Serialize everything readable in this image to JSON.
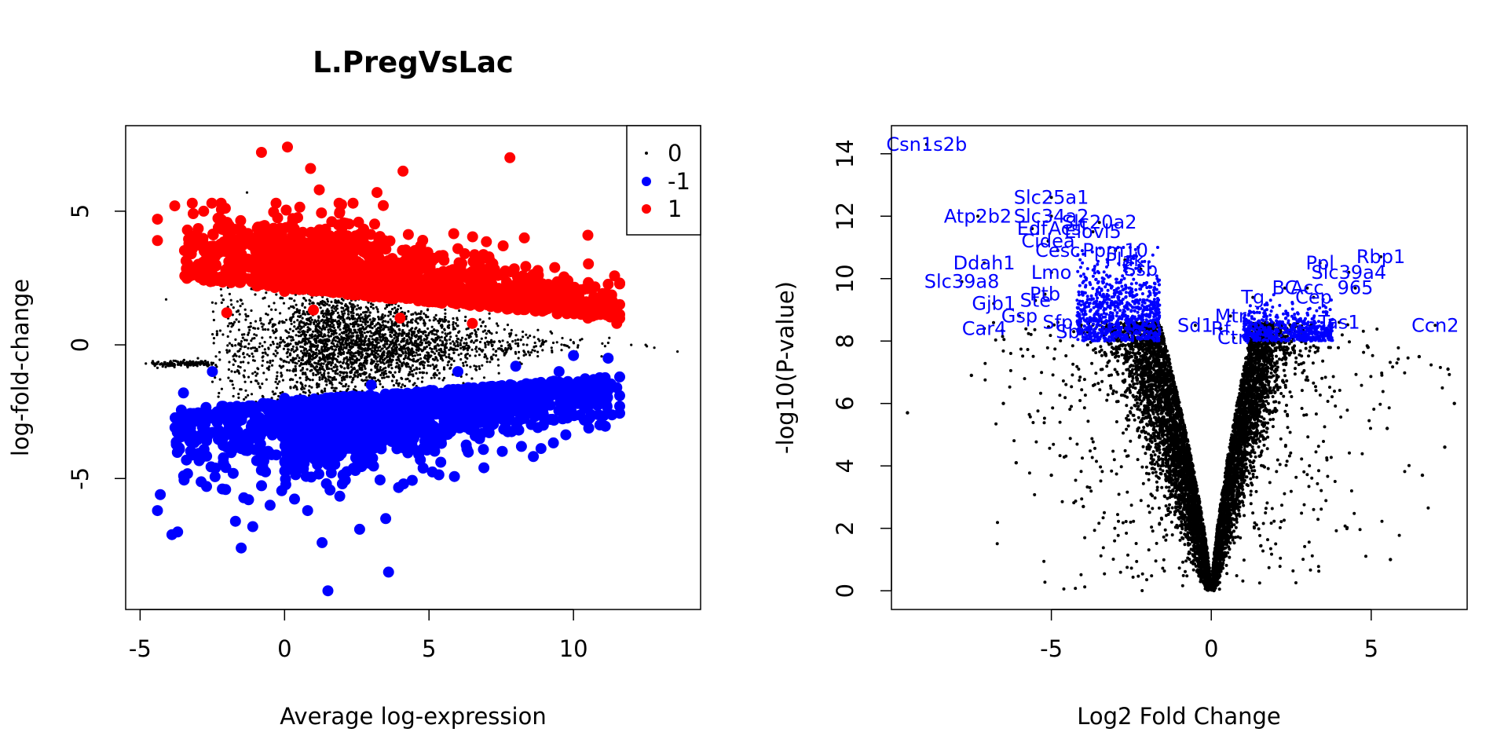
{
  "chart_data": [
    {
      "type": "scatter",
      "title": "L.PregVsLac",
      "xlabel": "Average log-expression",
      "ylabel": "log-fold-change",
      "xlim": [
        -5.5,
        14.4
      ],
      "ylim": [
        -9.9,
        8.2
      ],
      "xticks": [
        -5,
        0,
        5,
        10
      ],
      "xtick_labels": [
        "-5",
        "0",
        "5",
        "10"
      ],
      "yticks": [
        -5,
        0,
        5
      ],
      "ytick_labels": [
        "-5",
        "0",
        "5"
      ],
      "grid": false,
      "legend_position": "top-right",
      "series": [
        {
          "name": "0",
          "color": "#000000",
          "marker": "small-dot",
          "description_points": [
            [
              -4.8,
              -0.7
            ],
            [
              -4.5,
              -0.7
            ],
            [
              -4,
              -0.7
            ],
            [
              -3.5,
              -0.6
            ],
            [
              -3,
              -0.5
            ],
            [
              -2,
              -0.2
            ],
            [
              0,
              0.1
            ],
            [
              2,
              0.05
            ],
            [
              5,
              0
            ],
            [
              8,
              0.05
            ],
            [
              10,
              0.1
            ],
            [
              11,
              0.05
            ],
            [
              12,
              0
            ],
            [
              12.5,
              0
            ],
            [
              13.6,
              -0.25
            ],
            [
              -4.1,
              1.7
            ],
            [
              -1.9,
              1.9
            ],
            [
              -1.3,
              5.7
            ]
          ]
        },
        {
          "name": "-1",
          "color": "#0000ff",
          "marker": "filled-circle",
          "points": [
            [
              1.5,
              -9.2
            ],
            [
              3.6,
              -8.5
            ],
            [
              -1.5,
              -7.6
            ],
            [
              1.3,
              -7.4
            ],
            [
              2.6,
              -6.9
            ],
            [
              -3.7,
              -7
            ],
            [
              -3.9,
              -7.1
            ],
            [
              -4.4,
              -6.2
            ],
            [
              3.5,
              -6.5
            ],
            [
              -1.1,
              -6.8
            ],
            [
              -1.7,
              -6.6
            ],
            [
              0.8,
              -6.2
            ],
            [
              6.9,
              -4.6
            ],
            [
              8.2,
              -3.8
            ],
            [
              -2.7,
              -5.3
            ],
            [
              2,
              -5.2
            ],
            [
              4.7,
              -4.3
            ],
            [
              9,
              -2.8
            ],
            [
              10.5,
              -2.3
            ],
            [
              11.5,
              -1.6
            ],
            [
              11.2,
              -0.5
            ],
            [
              10,
              -0.4
            ],
            [
              -2.5,
              -1
            ],
            [
              0,
              -2
            ],
            [
              3,
              -1.5
            ],
            [
              6,
              -1
            ],
            [
              8,
              -0.8
            ],
            [
              9.5,
              -1
            ],
            [
              -3.5,
              -1.8
            ],
            [
              -4.3,
              -5.6
            ]
          ]
        },
        {
          "name": "1",
          "color": "#ff0000",
          "marker": "filled-circle",
          "points": [
            [
              0.1,
              7.4
            ],
            [
              -0.8,
              7.2
            ],
            [
              0.9,
              6.6
            ],
            [
              7.8,
              7
            ],
            [
              4.1,
              6.5
            ],
            [
              1.2,
              5.8
            ],
            [
              3.2,
              5.7
            ],
            [
              -3.8,
              5.2
            ],
            [
              -2.8,
              5
            ],
            [
              -4.4,
              4.7
            ],
            [
              -4.4,
              3.9
            ],
            [
              10.5,
              4.1
            ],
            [
              8.3,
              4
            ],
            [
              10.5,
              2.1
            ],
            [
              11.5,
              0.8
            ],
            [
              6,
              3.6
            ],
            [
              2,
              3.5
            ],
            [
              -1,
              3.8
            ],
            [
              -2.5,
              2.5
            ],
            [
              0,
              2
            ],
            [
              3,
              2.2
            ],
            [
              5,
              1.8
            ],
            [
              7,
              1.5
            ],
            [
              9,
              1.3
            ],
            [
              10.5,
              1
            ],
            [
              -2,
              1.2
            ],
            [
              1,
              1.3
            ],
            [
              4,
              1
            ],
            [
              6.5,
              0.8
            ],
            [
              -1.5,
              4.3
            ]
          ]
        }
      ]
    },
    {
      "type": "scatter",
      "xlabel": "Log2 Fold Change",
      "ylabel": "-log10(P-value)",
      "xlim": [
        -10,
        8
      ],
      "ylim": [
        -0.6,
        14.9
      ],
      "xticks": [
        -5,
        0,
        5
      ],
      "xtick_labels": [
        "-5",
        "0",
        "5"
      ],
      "yticks": [
        0,
        2,
        4,
        6,
        8,
        10,
        12,
        14
      ],
      "ytick_labels": [
        "0",
        "2",
        "4",
        "6",
        "8",
        "10",
        "12",
        "14"
      ],
      "grid": false,
      "label_color": "#0000ff",
      "point_color": "#000000",
      "notable_points": [
        [
          -9.5,
          5.7
        ],
        [
          -7.5,
          6.9
        ],
        [
          -6.5,
          6
        ],
        [
          -6.1,
          4.1
        ],
        [
          6.5,
          7.5
        ],
        [
          7.4,
          7.1
        ],
        [
          7.6,
          6
        ],
        [
          7.3,
          4.6
        ],
        [
          6.6,
          3.7
        ],
        [
          5.6,
          1
        ],
        [
          5.5,
          5.2
        ],
        [
          4.9,
          7.8
        ],
        [
          -5,
          3.7
        ],
        [
          -4,
          2.7
        ]
      ],
      "gene_labels": [
        {
          "text": "Csn1s2b",
          "x": -8.9,
          "y": 14.3
        },
        {
          "text": "Slc25a1",
          "x": -5,
          "y": 12.6
        },
        {
          "text": "Atp2b2",
          "x": -7.3,
          "y": 12
        },
        {
          "text": "Slc34a2",
          "x": -5,
          "y": 12
        },
        {
          "text": "Edf",
          "x": -5.6,
          "y": 11.6
        },
        {
          "text": "Acsl",
          "x": -4.5,
          "y": 11.6
        },
        {
          "text": "Slc20a2",
          "x": -3.5,
          "y": 11.8
        },
        {
          "text": "Cidea",
          "x": -5.1,
          "y": 11.2
        },
        {
          "text": "Elovl5",
          "x": -3.7,
          "y": 11.5
        },
        {
          "text": "Cesc",
          "x": -4.8,
          "y": 10.9
        },
        {
          "text": "Ppm10",
          "x": -3,
          "y": 10.9
        },
        {
          "text": "Ddah1",
          "x": -7.1,
          "y": 10.5
        },
        {
          "text": "Plak",
          "x": -2.7,
          "y": 10.6
        },
        {
          "text": "Ppl",
          "x": 3.4,
          "y": 10.5
        },
        {
          "text": "Rbp1",
          "x": 5.3,
          "y": 10.7
        },
        {
          "text": "Lmo",
          "x": -5,
          "y": 10.2
        },
        {
          "text": "Ptb",
          "x": -5.2,
          "y": 9.5
        },
        {
          "text": "Ssb",
          "x": -2.2,
          "y": 10.3
        },
        {
          "text": "Slc39a4",
          "x": 4.3,
          "y": 10.2
        },
        {
          "text": "Slc39a8",
          "x": -7.8,
          "y": 9.9
        },
        {
          "text": "BC",
          "x": 2.3,
          "y": 9.7
        },
        {
          "text": "Acc",
          "x": 3,
          "y": 9.7
        },
        {
          "text": "965",
          "x": 4.5,
          "y": 9.7
        },
        {
          "text": "Tg",
          "x": 1.3,
          "y": 9.4
        },
        {
          "text": "Cep",
          "x": 3.2,
          "y": 9.4
        },
        {
          "text": "Gjb1",
          "x": -6.8,
          "y": 9.2
        },
        {
          "text": "Ste",
          "x": -5.5,
          "y": 9.3
        },
        {
          "text": "Gsp",
          "x": -6,
          "y": 8.8
        },
        {
          "text": "Car4",
          "x": -7.1,
          "y": 8.4
        },
        {
          "text": "Sfp",
          "x": -4.8,
          "y": 8.6
        },
        {
          "text": "Mtr",
          "x": 0.6,
          "y": 8.8
        },
        {
          "text": "Tas1",
          "x": 4,
          "y": 8.6
        },
        {
          "text": "Ccn2",
          "x": 7,
          "y": 8.5
        },
        {
          "text": "Sbn",
          "x": -4.3,
          "y": 8.3
        },
        {
          "text": "Ctn",
          "x": 0.7,
          "y": 8.1
        },
        {
          "text": "Sd1",
          "x": -0.5,
          "y": 8.5
        },
        {
          "text": "Rf",
          "x": 0.3,
          "y": 8.4
        }
      ]
    }
  ]
}
